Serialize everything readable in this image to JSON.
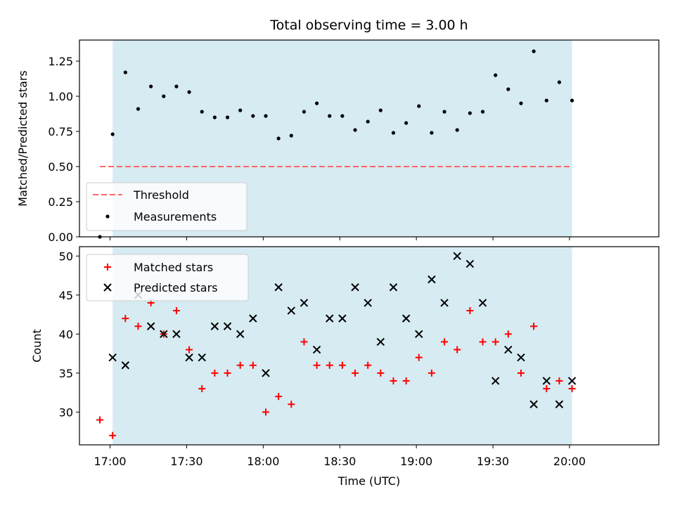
{
  "chart_data": [
    {
      "type": "scatter",
      "title": "Total observing time = 3.00 h",
      "ylabel": "Matched/Predicted stars",
      "ylim": [
        0,
        1.4
      ],
      "yticks": [
        0.0,
        0.25,
        0.5,
        0.75,
        1.0,
        1.25
      ],
      "ytick_labels": [
        "0.00",
        "0.25",
        "0.50",
        "0.75",
        "1.00",
        "1.25"
      ],
      "shaded_interval": [
        "17:01",
        "20:01"
      ],
      "shade_color": "#add8e6",
      "threshold": {
        "name": "Threshold",
        "value": 0.5,
        "x_range": [
          "16:56",
          "20:01"
        ],
        "color": "#ff6666",
        "style": "dashed"
      },
      "series": [
        {
          "name": "Measurements",
          "color": "#000000",
          "marker": "dot",
          "points": [
            [
              "16:56",
              0.0
            ],
            [
              "17:01",
              0.73
            ],
            [
              "17:06",
              1.17
            ],
            [
              "17:11",
              0.91
            ],
            [
              "17:16",
              1.07
            ],
            [
              "17:21",
              1.0
            ],
            [
              "17:26",
              1.07
            ],
            [
              "17:31",
              1.03
            ],
            [
              "17:36",
              0.89
            ],
            [
              "17:41",
              0.85
            ],
            [
              "17:46",
              0.85
            ],
            [
              "17:51",
              0.9
            ],
            [
              "17:56",
              0.86
            ],
            [
              "18:01",
              0.86
            ],
            [
              "18:06",
              0.7
            ],
            [
              "18:11",
              0.72
            ],
            [
              "18:16",
              0.89
            ],
            [
              "18:21",
              0.95
            ],
            [
              "18:26",
              0.86
            ],
            [
              "18:31",
              0.86
            ],
            [
              "18:36",
              0.76
            ],
            [
              "18:41",
              0.82
            ],
            [
              "18:46",
              0.9
            ],
            [
              "18:51",
              0.74
            ],
            [
              "18:56",
              0.81
            ],
            [
              "19:01",
              0.93
            ],
            [
              "19:06",
              0.74
            ],
            [
              "19:11",
              0.89
            ],
            [
              "19:16",
              0.76
            ],
            [
              "19:21",
              0.88
            ],
            [
              "19:26",
              0.89
            ],
            [
              "19:31",
              1.15
            ],
            [
              "19:36",
              1.05
            ],
            [
              "19:41",
              0.95
            ],
            [
              "19:46",
              1.32
            ],
            [
              "19:51",
              0.97
            ],
            [
              "19:56",
              1.1
            ],
            [
              "20:01",
              0.97
            ]
          ]
        }
      ],
      "legend": {
        "position": "lower-left"
      }
    },
    {
      "type": "scatter",
      "xlabel": "Time (UTC)",
      "ylabel": "Count",
      "ylim": [
        25.8,
        51.2
      ],
      "yticks": [
        30,
        35,
        40,
        45,
        50
      ],
      "ytick_labels": [
        "30",
        "35",
        "40",
        "45",
        "50"
      ],
      "xlim": [
        "16:48",
        "20:35"
      ],
      "xticks": [
        "17:00",
        "17:30",
        "18:00",
        "18:30",
        "19:00",
        "19:30",
        "20:00"
      ],
      "xtick_labels": [
        "17:00",
        "17:30",
        "18:00",
        "18:30",
        "19:00",
        "19:30",
        "20:00"
      ],
      "shaded_interval": [
        "17:01",
        "20:01"
      ],
      "shade_color": "#add8e6",
      "series": [
        {
          "name": "Matched stars",
          "color": "#ff0000",
          "marker": "plus",
          "points": [
            [
              "16:56",
              29
            ],
            [
              "17:01",
              27
            ],
            [
              "17:06",
              42
            ],
            [
              "17:11",
              41
            ],
            [
              "17:16",
              44
            ],
            [
              "17:21",
              40
            ],
            [
              "17:26",
              43
            ],
            [
              "17:31",
              38
            ],
            [
              "17:36",
              33
            ],
            [
              "17:41",
              35
            ],
            [
              "17:46",
              35
            ],
            [
              "17:51",
              36
            ],
            [
              "17:56",
              36
            ],
            [
              "18:01",
              30
            ],
            [
              "18:06",
              32
            ],
            [
              "18:11",
              31
            ],
            [
              "18:16",
              39
            ],
            [
              "18:21",
              36
            ],
            [
              "18:26",
              36
            ],
            [
              "18:31",
              36
            ],
            [
              "18:36",
              35
            ],
            [
              "18:41",
              36
            ],
            [
              "18:46",
              35
            ],
            [
              "18:51",
              34
            ],
            [
              "18:56",
              34
            ],
            [
              "19:01",
              37
            ],
            [
              "19:06",
              35
            ],
            [
              "19:11",
              39
            ],
            [
              "19:16",
              38
            ],
            [
              "19:21",
              43
            ],
            [
              "19:26",
              39
            ],
            [
              "19:31",
              39
            ],
            [
              "19:36",
              40
            ],
            [
              "19:41",
              35
            ],
            [
              "19:46",
              41
            ],
            [
              "19:51",
              33
            ],
            [
              "19:56",
              34
            ],
            [
              "20:01",
              33
            ]
          ]
        },
        {
          "name": "Predicted stars",
          "color": "#000000",
          "marker": "x",
          "points": [
            [
              "17:01",
              37
            ],
            [
              "17:06",
              36
            ],
            [
              "17:11",
              45
            ],
            [
              "17:16",
              41
            ],
            [
              "17:21",
              40
            ],
            [
              "17:26",
              40
            ],
            [
              "17:31",
              37
            ],
            [
              "17:36",
              37
            ],
            [
              "17:41",
              41
            ],
            [
              "17:46",
              41
            ],
            [
              "17:51",
              40
            ],
            [
              "17:56",
              42
            ],
            [
              "18:01",
              35
            ],
            [
              "18:06",
              46
            ],
            [
              "18:11",
              43
            ],
            [
              "18:16",
              44
            ],
            [
              "18:21",
              38
            ],
            [
              "18:26",
              42
            ],
            [
              "18:31",
              42
            ],
            [
              "18:36",
              46
            ],
            [
              "18:41",
              44
            ],
            [
              "18:46",
              39
            ],
            [
              "18:51",
              46
            ],
            [
              "18:56",
              42
            ],
            [
              "19:01",
              40
            ],
            [
              "19:06",
              47
            ],
            [
              "19:11",
              44
            ],
            [
              "19:16",
              50
            ],
            [
              "19:21",
              49
            ],
            [
              "19:26",
              44
            ],
            [
              "19:31",
              34
            ],
            [
              "19:36",
              38
            ],
            [
              "19:41",
              37
            ],
            [
              "19:46",
              31
            ],
            [
              "19:51",
              34
            ],
            [
              "19:56",
              31
            ],
            [
              "20:01",
              34
            ]
          ]
        }
      ],
      "legend": {
        "position": "upper-left"
      }
    }
  ]
}
